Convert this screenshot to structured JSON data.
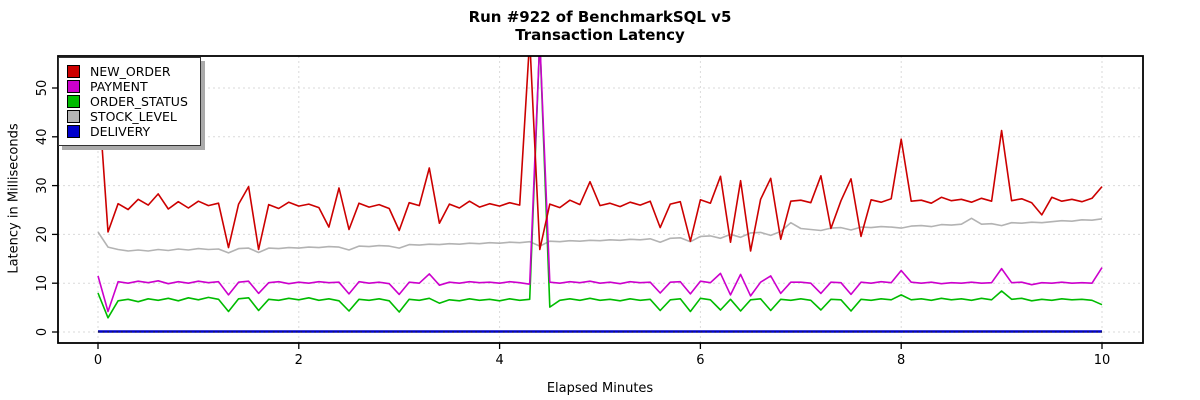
{
  "chart_data": {
    "type": "line",
    "title": "Run #922 of BenchmarkSQL v5",
    "subtitle": "Transaction Latency",
    "xlabel": "Elapsed Minutes",
    "ylabel": "Latency in Milliseconds",
    "x_ticks": [
      0,
      2,
      4,
      6,
      8,
      10
    ],
    "y_ticks": [
      0,
      10,
      20,
      30,
      40,
      50
    ],
    "xlim": [
      -0.39,
      10.41
    ],
    "ylim": [
      -2.3,
      56.4
    ],
    "grid": "dotted",
    "grid_color": "#dadada",
    "legend_position": "top-left",
    "x_start": 0,
    "x_step": 0.1,
    "series": [
      {
        "name": "NEW_ORDER",
        "color": "#cc0000",
        "values": [
          50.0,
          20.5,
          26.3,
          25.1,
          27.2,
          26.0,
          28.3,
          25.2,
          26.7,
          25.4,
          26.8,
          25.9,
          26.4,
          17.3,
          26.2,
          29.8,
          16.9,
          26.1,
          25.3,
          26.6,
          25.8,
          26.2,
          25.5,
          21.5,
          29.5,
          21.0,
          26.4,
          25.6,
          26.1,
          25.3,
          20.8,
          26.5,
          25.9,
          33.6,
          22.3,
          26.2,
          25.4,
          26.8,
          25.6,
          26.3,
          25.8,
          26.5,
          26.0,
          60.0,
          16.9,
          26.2,
          25.5,
          27.0,
          26.1,
          30.8,
          25.9,
          26.4,
          25.7,
          26.6,
          26.0,
          26.8,
          21.4,
          26.2,
          26.7,
          18.6,
          27.1,
          26.4,
          31.9,
          18.4,
          31.0,
          16.6,
          27.2,
          31.5,
          19.0,
          26.8,
          27.0,
          26.5,
          32.0,
          21.2,
          26.9,
          31.4,
          19.6,
          27.1,
          26.6,
          27.3,
          39.5,
          26.8,
          27.0,
          26.4,
          27.6,
          26.9,
          27.2,
          26.6,
          27.4,
          26.8,
          41.3,
          26.9,
          27.3,
          26.5,
          24.0,
          27.6,
          26.8,
          27.2,
          26.7,
          27.4,
          29.8
        ]
      },
      {
        "name": "PAYMENT",
        "color": "#cc00cc",
        "values": [
          11.5,
          4.2,
          10.3,
          10.0,
          10.4,
          10.1,
          10.5,
          9.9,
          10.3,
          10.0,
          10.4,
          10.1,
          10.3,
          7.6,
          10.2,
          10.4,
          7.9,
          10.1,
          10.3,
          9.9,
          10.2,
          10.0,
          10.3,
          10.1,
          10.2,
          7.8,
          10.3,
          10.0,
          10.2,
          9.9,
          7.7,
          10.2,
          10.0,
          11.9,
          9.6,
          10.2,
          10.0,
          10.3,
          10.1,
          10.2,
          10.0,
          10.3,
          10.1,
          9.8,
          60.0,
          10.2,
          10.0,
          10.3,
          10.1,
          10.4,
          10.0,
          10.2,
          9.9,
          10.3,
          10.1,
          10.2,
          8.0,
          10.2,
          10.3,
          7.8,
          10.4,
          10.1,
          12.0,
          7.6,
          11.8,
          7.4,
          10.2,
          11.5,
          7.9,
          10.2,
          10.2,
          10.0,
          7.9,
          10.2,
          10.1,
          7.7,
          10.2,
          10.0,
          10.3,
          10.1,
          12.6,
          10.2,
          10.0,
          10.2,
          9.9,
          10.1,
          10.0,
          10.2,
          10.0,
          10.1,
          13.0,
          10.1,
          10.2,
          9.7,
          10.1,
          10.0,
          10.2,
          10.0,
          10.1,
          10.0,
          13.2
        ]
      },
      {
        "name": "ORDER_STATUS",
        "color": "#00bb00",
        "values": [
          8.0,
          2.9,
          6.4,
          6.7,
          6.2,
          6.8,
          6.5,
          6.9,
          6.4,
          7.0,
          6.6,
          7.1,
          6.7,
          4.2,
          6.8,
          7.0,
          4.4,
          6.7,
          6.5,
          6.9,
          6.6,
          7.0,
          6.5,
          6.8,
          6.4,
          4.3,
          6.7,
          6.5,
          6.8,
          6.4,
          4.1,
          6.7,
          6.5,
          6.9,
          5.9,
          6.6,
          6.4,
          6.8,
          6.5,
          6.7,
          6.4,
          6.8,
          6.5,
          6.7,
          60.0,
          5.1,
          6.5,
          6.8,
          6.5,
          6.9,
          6.5,
          6.7,
          6.4,
          6.8,
          6.5,
          6.7,
          4.4,
          6.6,
          6.8,
          4.2,
          6.9,
          6.6,
          4.5,
          6.7,
          4.3,
          6.6,
          6.8,
          4.4,
          6.7,
          6.5,
          6.8,
          6.5,
          4.5,
          6.7,
          6.6,
          4.3,
          6.7,
          6.5,
          6.8,
          6.6,
          7.6,
          6.6,
          6.8,
          6.5,
          6.9,
          6.6,
          6.8,
          6.5,
          6.9,
          6.6,
          8.4,
          6.7,
          6.9,
          6.4,
          6.7,
          6.5,
          6.8,
          6.6,
          6.7,
          6.5,
          5.6
        ]
      },
      {
        "name": "STOCK_LEVEL",
        "color": "#b3b3b3",
        "values": [
          20.5,
          17.4,
          16.9,
          16.6,
          16.8,
          16.6,
          16.9,
          16.7,
          17.0,
          16.8,
          17.1,
          16.9,
          17.0,
          16.2,
          17.1,
          17.2,
          16.3,
          17.2,
          17.1,
          17.3,
          17.2,
          17.4,
          17.3,
          17.5,
          17.4,
          16.8,
          17.6,
          17.5,
          17.7,
          17.6,
          17.2,
          17.9,
          17.8,
          18.0,
          17.9,
          18.1,
          18.0,
          18.2,
          18.1,
          18.3,
          18.2,
          18.4,
          18.3,
          18.5,
          17.6,
          18.6,
          18.5,
          18.7,
          18.6,
          18.8,
          18.7,
          18.9,
          18.8,
          19.0,
          18.9,
          19.1,
          18.4,
          19.2,
          19.3,
          18.5,
          19.6,
          19.7,
          19.2,
          20.0,
          19.4,
          20.3,
          20.4,
          19.8,
          20.6,
          22.4,
          21.2,
          21.0,
          20.8,
          21.3,
          21.4,
          20.9,
          21.5,
          21.4,
          21.6,
          21.5,
          21.3,
          21.7,
          21.8,
          21.6,
          22.0,
          21.9,
          22.1,
          23.3,
          22.1,
          22.2,
          21.8,
          22.4,
          22.3,
          22.5,
          22.4,
          22.6,
          22.8,
          22.7,
          23.0,
          22.9,
          23.2
        ]
      },
      {
        "name": "DELIVERY",
        "color": "#0000cc",
        "points": [
          [
            0,
            0.1
          ],
          [
            10,
            0.1
          ]
        ]
      }
    ]
  }
}
